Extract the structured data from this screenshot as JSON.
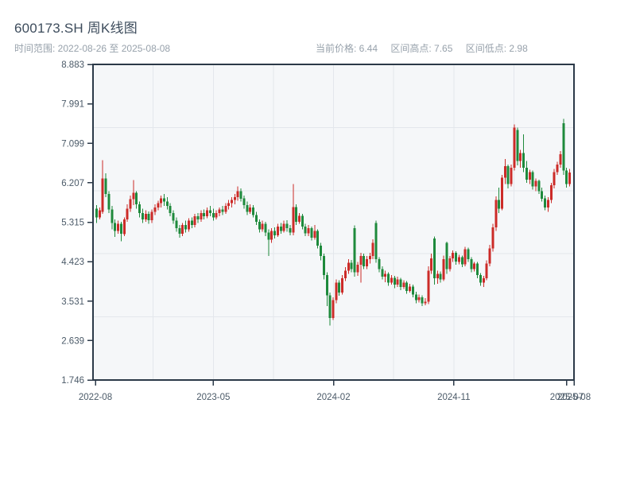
{
  "header": {
    "title": "600173.SH 周K线图",
    "subtitle": "时间范围: 2022-08-26 至 2025-08-08",
    "stats": {
      "current": "当前价格: 6.44",
      "high": "区间高点: 7.65",
      "low": "区间低点: 2.98"
    }
  },
  "chart_data": {
    "type": "candlestick",
    "symbol": "600173.SH",
    "period": "weekly",
    "title": "600173.SH 周K线图",
    "date_start": "2022-08-26",
    "date_end": "2025-08-08",
    "current_price": 6.44,
    "range_high": 7.65,
    "range_low": 2.98,
    "ylim": [
      1.746,
      8.883
    ],
    "y_ticks": [
      "8.883",
      "7.991",
      "7.099",
      "6.207",
      "5.315",
      "4.423",
      "3.531",
      "2.639",
      "1.746"
    ],
    "x_ticks": [
      {
        "label": "2022-08",
        "pos": 0.005
      },
      {
        "label": "2023-05",
        "pos": 0.25
      },
      {
        "label": "2024-02",
        "pos": 0.5
      },
      {
        "label": "2024-11",
        "pos": 0.75
      },
      {
        "label": "2025-07",
        "pos": 0.985
      },
      {
        "label": "2025-08",
        "pos": 1.0
      }
    ],
    "grid": {
      "h_divisions": 5,
      "v_divisions": 8
    },
    "colors": {
      "up": "#cc2b28",
      "down": "#1e8a3c",
      "plot_bg": "#f5f7f9",
      "grid": "#e3e7ec",
      "axis": "#2b3948",
      "tick_text": "#4b5a68"
    },
    "ohlc_format": [
      "open",
      "high",
      "low",
      "close"
    ],
    "candles": [
      [
        5.62,
        5.7,
        5.3,
        5.42
      ],
      [
        5.42,
        5.65,
        5.38,
        5.58
      ],
      [
        5.55,
        6.72,
        5.5,
        6.3
      ],
      [
        6.3,
        6.42,
        5.88,
        5.95
      ],
      [
        5.95,
        6.02,
        5.52,
        5.6
      ],
      [
        5.6,
        5.68,
        5.15,
        5.3
      ],
      [
        5.3,
        5.38,
        4.98,
        5.12
      ],
      [
        5.12,
        5.35,
        5.05,
        5.28
      ],
      [
        5.28,
        5.32,
        4.88,
        5.05
      ],
      [
        5.05,
        5.42,
        5.0,
        5.38
      ],
      [
        5.38,
        5.72,
        5.32,
        5.62
      ],
      [
        5.62,
        5.92,
        5.55,
        5.84
      ],
      [
        5.84,
        6.27,
        5.7,
        5.98
      ],
      [
        5.98,
        6.02,
        5.62,
        5.72
      ],
      [
        5.72,
        5.78,
        5.42,
        5.52
      ],
      [
        5.52,
        5.62,
        5.3,
        5.38
      ],
      [
        5.38,
        5.58,
        5.32,
        5.5
      ],
      [
        5.5,
        5.56,
        5.28,
        5.36
      ],
      [
        5.36,
        5.6,
        5.3,
        5.55
      ],
      [
        5.55,
        5.72,
        5.48,
        5.65
      ],
      [
        5.65,
        5.8,
        5.58,
        5.75
      ],
      [
        5.75,
        5.92,
        5.65,
        5.85
      ],
      [
        5.85,
        5.95,
        5.68,
        5.78
      ],
      [
        5.78,
        5.88,
        5.6,
        5.68
      ],
      [
        5.68,
        5.75,
        5.45,
        5.52
      ],
      [
        5.52,
        5.58,
        5.28,
        5.35
      ],
      [
        5.35,
        5.42,
        5.1,
        5.18
      ],
      [
        5.18,
        5.25,
        4.96,
        5.05
      ],
      [
        5.05,
        5.3,
        5.0,
        5.25
      ],
      [
        5.25,
        5.35,
        5.08,
        5.15
      ],
      [
        5.15,
        5.4,
        5.1,
        5.35
      ],
      [
        5.35,
        5.42,
        5.18,
        5.25
      ],
      [
        5.25,
        5.5,
        5.2,
        5.45
      ],
      [
        5.45,
        5.52,
        5.3,
        5.38
      ],
      [
        5.38,
        5.58,
        5.32,
        5.52
      ],
      [
        5.52,
        5.6,
        5.38,
        5.45
      ],
      [
        5.45,
        5.65,
        5.4,
        5.58
      ],
      [
        5.58,
        5.68,
        5.45,
        5.52
      ],
      [
        5.52,
        5.62,
        5.35,
        5.42
      ],
      [
        5.42,
        5.58,
        5.38,
        5.52
      ],
      [
        5.52,
        5.65,
        5.45,
        5.6
      ],
      [
        5.6,
        5.68,
        5.48,
        5.55
      ],
      [
        5.55,
        5.75,
        5.5,
        5.68
      ],
      [
        5.68,
        5.82,
        5.6,
        5.75
      ],
      [
        5.75,
        5.88,
        5.65,
        5.82
      ],
      [
        5.82,
        5.95,
        5.72,
        5.88
      ],
      [
        5.88,
        6.12,
        5.8,
        6.02
      ],
      [
        6.02,
        6.08,
        5.78,
        5.85
      ],
      [
        5.85,
        5.92,
        5.62,
        5.7
      ],
      [
        5.7,
        5.78,
        5.48,
        5.55
      ],
      [
        5.55,
        5.72,
        5.5,
        5.65
      ],
      [
        5.65,
        5.7,
        5.42,
        5.48
      ],
      [
        5.48,
        5.55,
        5.25,
        5.32
      ],
      [
        5.32,
        5.38,
        5.08,
        5.15
      ],
      [
        5.15,
        5.35,
        5.1,
        5.28
      ],
      [
        5.28,
        5.32,
        5.0,
        5.08
      ],
      [
        5.08,
        5.15,
        4.55,
        4.92
      ],
      [
        4.92,
        5.18,
        4.85,
        5.12
      ],
      [
        5.12,
        5.2,
        4.95,
        5.02
      ],
      [
        5.02,
        5.28,
        4.98,
        5.22
      ],
      [
        5.22,
        5.3,
        5.05,
        5.12
      ],
      [
        5.12,
        5.35,
        5.08,
        5.28
      ],
      [
        5.28,
        5.36,
        5.1,
        5.18
      ],
      [
        5.18,
        5.25,
        5.02,
        5.08
      ],
      [
        5.08,
        6.18,
        5.02,
        5.66
      ],
      [
        5.66,
        5.72,
        5.25,
        5.32
      ],
      [
        5.32,
        5.52,
        5.28,
        5.46
      ],
      [
        5.46,
        5.5,
        5.15,
        5.22
      ],
      [
        5.22,
        5.28,
        5.0,
        5.06
      ],
      [
        5.06,
        5.25,
        5.0,
        5.18
      ],
      [
        5.18,
        5.22,
        4.9,
        4.96
      ],
      [
        4.96,
        5.25,
        4.92,
        5.12
      ],
      [
        5.12,
        5.15,
        4.72,
        4.78
      ],
      [
        4.78,
        4.85,
        4.45,
        4.55
      ],
      [
        4.55,
        4.6,
        4.02,
        4.12
      ],
      [
        4.12,
        4.18,
        3.42,
        3.66
      ],
      [
        3.66,
        3.72,
        2.98,
        3.15
      ],
      [
        3.15,
        3.62,
        3.1,
        3.55
      ],
      [
        3.55,
        4.02,
        3.48,
        3.95
      ],
      [
        3.95,
        4.0,
        3.65,
        3.72
      ],
      [
        3.72,
        4.12,
        3.68,
        4.05
      ],
      [
        4.05,
        4.3,
        3.98,
        4.22
      ],
      [
        4.22,
        4.48,
        4.15,
        4.4
      ],
      [
        4.4,
        4.46,
        4.18,
        4.25
      ],
      [
        5.18,
        5.24,
        4.08,
        4.18
      ],
      [
        4.18,
        4.42,
        4.1,
        4.35
      ],
      [
        4.35,
        4.62,
        3.95,
        4.55
      ],
      [
        4.55,
        4.6,
        4.25,
        4.32
      ],
      [
        4.32,
        4.55,
        4.25,
        4.48
      ],
      [
        4.48,
        4.62,
        4.38,
        4.55
      ],
      [
        4.55,
        4.93,
        4.48,
        4.85
      ],
      [
        5.3,
        5.35,
        4.4,
        4.48
      ],
      [
        4.48,
        4.52,
        4.18,
        4.25
      ],
      [
        4.25,
        4.32,
        4.02,
        4.08
      ],
      [
        4.08,
        4.22,
        3.96,
        4.15
      ],
      [
        4.15,
        4.18,
        3.88,
        3.95
      ],
      [
        3.95,
        4.12,
        3.9,
        4.06
      ],
      [
        4.06,
        4.1,
        3.82,
        3.9
      ],
      [
        3.9,
        4.08,
        3.85,
        4.02
      ],
      [
        4.02,
        4.06,
        3.78,
        3.85
      ],
      [
        3.85,
        4.0,
        3.8,
        3.95
      ],
      [
        3.95,
        3.98,
        3.7,
        3.76
      ],
      [
        3.76,
        3.92,
        3.72,
        3.86
      ],
      [
        3.86,
        3.9,
        3.62,
        3.68
      ],
      [
        3.68,
        3.74,
        3.48,
        3.55
      ],
      [
        3.55,
        3.68,
        3.5,
        3.62
      ],
      [
        3.62,
        3.66,
        3.42,
        3.48
      ],
      [
        3.48,
        3.6,
        3.44,
        3.52
      ],
      [
        3.52,
        4.32,
        3.46,
        4.22
      ],
      [
        4.22,
        4.6,
        4.15,
        4.5
      ],
      [
        4.95,
        4.99,
        3.9,
        4.05
      ],
      [
        4.05,
        4.22,
        3.92,
        4.15
      ],
      [
        4.15,
        4.2,
        3.95,
        4.02
      ],
      [
        4.02,
        4.56,
        3.98,
        4.48
      ],
      [
        4.85,
        4.87,
        4.15,
        4.25
      ],
      [
        4.25,
        4.55,
        4.2,
        4.5
      ],
      [
        4.5,
        4.68,
        4.42,
        4.62
      ],
      [
        4.62,
        4.66,
        4.35,
        4.42
      ],
      [
        4.42,
        4.58,
        4.36,
        4.52
      ],
      [
        4.52,
        4.56,
        4.3,
        4.36
      ],
      [
        4.36,
        4.76,
        4.32,
        4.7
      ],
      [
        4.7,
        4.74,
        4.42,
        4.48
      ],
      [
        4.48,
        4.52,
        4.18,
        4.25
      ],
      [
        4.25,
        4.42,
        4.2,
        4.38
      ],
      [
        4.38,
        4.42,
        4.05,
        4.12
      ],
      [
        4.12,
        4.16,
        3.88,
        3.95
      ],
      [
        3.95,
        4.1,
        3.85,
        4.05
      ],
      [
        4.05,
        4.45,
        4.0,
        4.38
      ],
      [
        4.38,
        4.8,
        4.32,
        4.72
      ],
      [
        4.72,
        5.28,
        4.65,
        5.2
      ],
      [
        5.2,
        5.9,
        5.12,
        5.82
      ],
      [
        5.82,
        6.1,
        5.52,
        5.62
      ],
      [
        5.62,
        6.38,
        5.58,
        6.32
      ],
      [
        6.32,
        6.74,
        6.18,
        6.58
      ],
      [
        6.58,
        6.62,
        6.08,
        6.18
      ],
      [
        6.18,
        6.62,
        6.12,
        6.55
      ],
      [
        6.55,
        7.53,
        6.48,
        7.45
      ],
      [
        7.4,
        7.45,
        6.6,
        6.7
      ],
      [
        6.7,
        6.95,
        6.55,
        6.88
      ],
      [
        6.88,
        7.3,
        6.45,
        6.55
      ],
      [
        6.55,
        6.7,
        6.2,
        6.28
      ],
      [
        6.28,
        6.5,
        6.18,
        6.45
      ],
      [
        6.45,
        6.48,
        6.05,
        6.12
      ],
      [
        6.12,
        6.3,
        6.02,
        6.25
      ],
      [
        6.25,
        6.28,
        5.95,
        6.02
      ],
      [
        6.02,
        6.1,
        5.78,
        5.85
      ],
      [
        5.85,
        5.92,
        5.58,
        5.65
      ],
      [
        5.65,
        5.88,
        5.55,
        5.82
      ],
      [
        5.82,
        6.2,
        5.75,
        6.15
      ],
      [
        6.15,
        6.52,
        6.08,
        6.45
      ],
      [
        6.45,
        6.68,
        6.38,
        6.62
      ],
      [
        6.62,
        6.92,
        6.55,
        6.85
      ],
      [
        7.55,
        7.65,
        6.38,
        6.48
      ],
      [
        6.48,
        6.55,
        6.1,
        6.18
      ],
      [
        6.18,
        6.52,
        6.12,
        6.44
      ]
    ]
  }
}
